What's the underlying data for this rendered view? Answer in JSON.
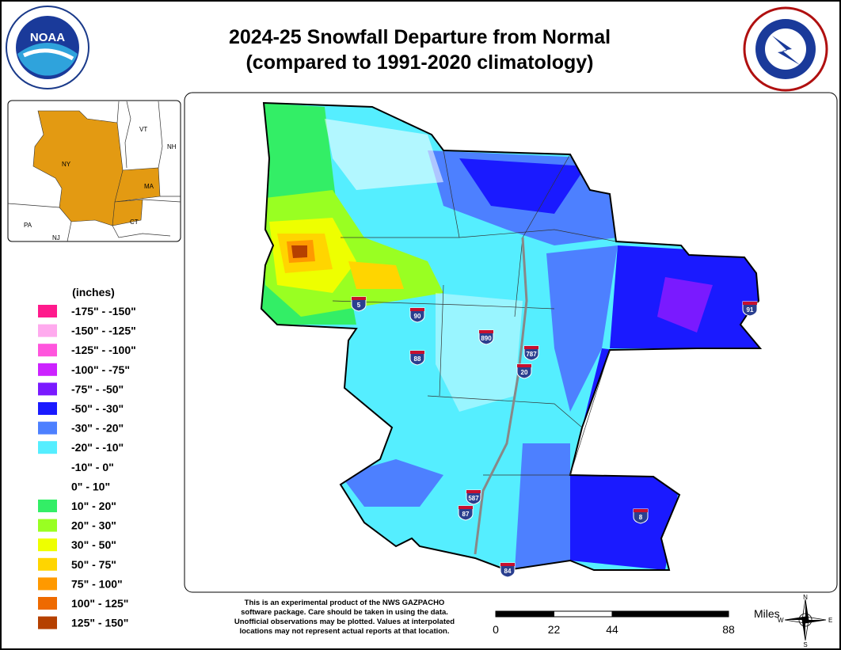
{
  "header": {
    "title_line1": "2024-25 Snowfall Departure from Normal",
    "title_line2": "(compared to 1991-2020 climatology)"
  },
  "logos": {
    "noaa": "NOAA"
  },
  "inset": {
    "labels": [
      "VT",
      "NH",
      "NY",
      "MA",
      "CT",
      "PA",
      "NJ"
    ]
  },
  "legend": {
    "title": "(inches)",
    "items": [
      {
        "label": "-175\" - -150\"",
        "color": "#ff1a8c"
      },
      {
        "label": "-150\" - -125\"",
        "color": "#ffaaee"
      },
      {
        "label": "-125\" - -100\"",
        "color": "#ff55dd"
      },
      {
        "label": "-100\" - -75\"",
        "color": "#cc22ff"
      },
      {
        "label": "-75\" - -50\"",
        "color": "#7a1aff"
      },
      {
        "label": "-50\" - -30\"",
        "color": "#1a1aff"
      },
      {
        "label": "-30\" - -20\"",
        "color": "#4d80ff"
      },
      {
        "label": "-20\" - -10\"",
        "color": "#55eeff"
      },
      {
        "label": "-10\" - 0\"",
        "color": "#ffffff"
      },
      {
        "label": "0\" - 10\"",
        "color": "#ffffff"
      },
      {
        "label": "10\" - 20\"",
        "color": "#33ee66"
      },
      {
        "label": "20\" - 30\"",
        "color": "#99ff22"
      },
      {
        "label": "30\" - 50\"",
        "color": "#eeff00"
      },
      {
        "label": "50\" - 75\"",
        "color": "#ffd500"
      },
      {
        "label": "75\" - 100\"",
        "color": "#ff9900"
      },
      {
        "label": "100\" - 125\"",
        "color": "#ee6a00"
      },
      {
        "label": "125\" - 150\"",
        "color": "#b54000"
      }
    ]
  },
  "shields": [
    "5",
    "90",
    "890",
    "787",
    "88",
    "20",
    "587",
    "87",
    "84",
    "91",
    "8"
  ],
  "disclaimer": [
    "This is an experimental product of the NWS GAZPACHO",
    "software package. Care should be taken in using the data.",
    "Unofficial observations may be plotted. Values at interpolated",
    "locations may not represent actual reports at that location."
  ],
  "scale": {
    "unit": "Miles",
    "ticks": [
      0,
      22,
      44,
      88
    ]
  },
  "compass": {
    "n": "N",
    "e": "E",
    "s": "S",
    "w": "W"
  }
}
